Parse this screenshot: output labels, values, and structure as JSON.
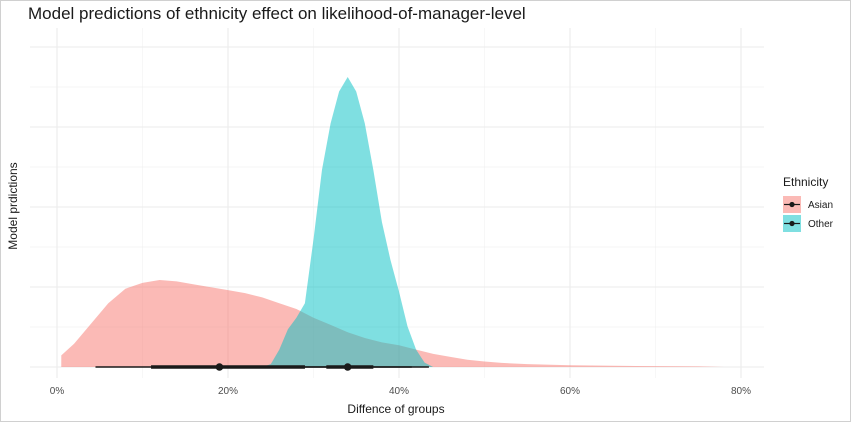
{
  "chart_data": {
    "type": "area",
    "title": "Model predictions of ethnicity effect on likelihood-of-manager-level",
    "xlabel": "Diffence of groups",
    "ylabel": "Model prdictions",
    "x_ticks": [
      0,
      0.2,
      0.4,
      0.6,
      0.8
    ],
    "x_tick_labels": [
      "0%",
      "20%",
      "40%",
      "60%",
      "80%"
    ],
    "xlim": [
      -0.01,
      0.82
    ],
    "ylim": [
      0,
      1.0
    ],
    "grid": true,
    "legend": {
      "title": "Ethnicity",
      "position": "right"
    },
    "series": [
      {
        "name": "Asian",
        "color": "#F8766D",
        "x": [
          0.005,
          0.02,
          0.04,
          0.06,
          0.08,
          0.1,
          0.12,
          0.14,
          0.16,
          0.18,
          0.2,
          0.22,
          0.24,
          0.26,
          0.28,
          0.3,
          0.32,
          0.34,
          0.36,
          0.38,
          0.4,
          0.42,
          0.44,
          0.46,
          0.48,
          0.5,
          0.52,
          0.55,
          0.6,
          0.65,
          0.7,
          0.75,
          0.78
        ],
        "density": [
          0.04,
          0.08,
          0.15,
          0.22,
          0.27,
          0.29,
          0.3,
          0.295,
          0.285,
          0.275,
          0.265,
          0.255,
          0.24,
          0.22,
          0.2,
          0.17,
          0.145,
          0.12,
          0.1,
          0.085,
          0.075,
          0.06,
          0.045,
          0.035,
          0.025,
          0.019,
          0.014,
          0.01,
          0.006,
          0.004,
          0.003,
          0.002,
          0.0
        ],
        "median": 0.19,
        "interval_66": [
          0.11,
          0.29
        ],
        "interval_95": [
          0.045,
          0.415
        ]
      },
      {
        "name": "Other",
        "color": "#00BFC4",
        "x": [
          0.24,
          0.25,
          0.26,
          0.27,
          0.28,
          0.29,
          0.3,
          0.31,
          0.32,
          0.33,
          0.34,
          0.35,
          0.36,
          0.37,
          0.38,
          0.39,
          0.4,
          0.41,
          0.42,
          0.43,
          0.44
        ],
        "density": [
          0.0,
          0.01,
          0.06,
          0.13,
          0.17,
          0.22,
          0.44,
          0.68,
          0.84,
          0.95,
          1.0,
          0.95,
          0.84,
          0.68,
          0.5,
          0.37,
          0.26,
          0.14,
          0.06,
          0.015,
          0.0
        ],
        "median": 0.34,
        "interval_66": [
          0.315,
          0.37
        ],
        "interval_95": [
          0.275,
          0.435
        ]
      }
    ]
  }
}
